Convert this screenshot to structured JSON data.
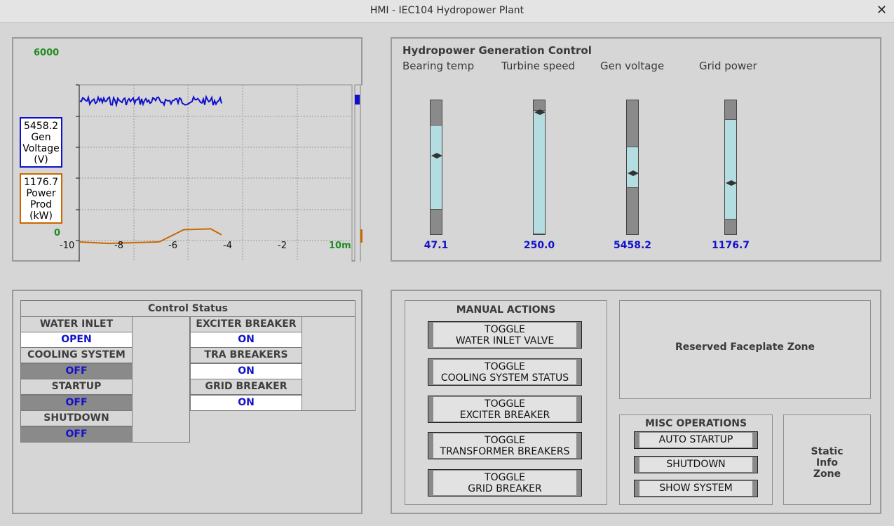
{
  "window": {
    "title": "HMI - IEC104 Hydropower Plant",
    "close_glyph": "✕"
  },
  "trend": {
    "y_max_label": "6000",
    "y_min_label": "0",
    "x_ticks": [
      "-10",
      "-8",
      "-6",
      "-4",
      "-2"
    ],
    "x_end_label": "10m",
    "voltage_box": {
      "value": "5458.2",
      "l1": "Gen",
      "l2": "Voltage",
      "l3": "(V)"
    },
    "power_box": {
      "value": "1176.7",
      "l1": "Power",
      "l2": "Prod",
      "l3": "(kW)"
    },
    "colors": {
      "voltage": "#1010cc",
      "power": "#cc6600",
      "label_green": "#228b22"
    }
  },
  "gauges": {
    "title": "Hydropower Generation Control",
    "items": [
      {
        "label": "Bearing temp",
        "value": "47.1"
      },
      {
        "label": "Turbine speed",
        "value": "250.0"
      },
      {
        "label": "Gen voltage",
        "value": "5458.2"
      },
      {
        "label": "Grid power",
        "value": "1176.7"
      }
    ]
  },
  "status": {
    "title": "Control Status",
    "left": [
      {
        "label": "WATER INLET",
        "value": "OPEN",
        "state": "on"
      },
      {
        "label": "COOLING SYSTEM",
        "value": "OFF",
        "state": "off"
      },
      {
        "label": "STARTUP",
        "value": "OFF",
        "state": "off"
      },
      {
        "label": "SHUTDOWN",
        "value": "OFF",
        "state": "off"
      }
    ],
    "right": [
      {
        "label": "EXCITER BREAKER",
        "value": "ON",
        "state": "on"
      },
      {
        "label": "TRA BREAKERS",
        "value": "ON",
        "state": "on"
      },
      {
        "label": "GRID BREAKER",
        "value": "ON",
        "state": "on"
      }
    ]
  },
  "manual": {
    "title": "MANUAL ACTIONS",
    "buttons": [
      {
        "l1": "TOGGLE",
        "l2": "WATER INLET VALVE"
      },
      {
        "l1": "TOGGLE",
        "l2": "COOLING SYSTEM STATUS"
      },
      {
        "l1": "TOGGLE",
        "l2": "EXCITER BREAKER"
      },
      {
        "l1": "TOGGLE",
        "l2": "TRANSFORMER BREAKERS"
      },
      {
        "l1": "TOGGLE",
        "l2": "GRID BREAKER"
      }
    ]
  },
  "reserved": {
    "label": "Reserved Faceplate Zone"
  },
  "misc": {
    "title": "MISC OPERATIONS",
    "buttons": [
      "AUTO STARTUP",
      "SHUTDOWN",
      "SHOW SYSTEM"
    ]
  },
  "static_info": {
    "l1": "Static",
    "l2": "Info",
    "l3": "Zone"
  }
}
